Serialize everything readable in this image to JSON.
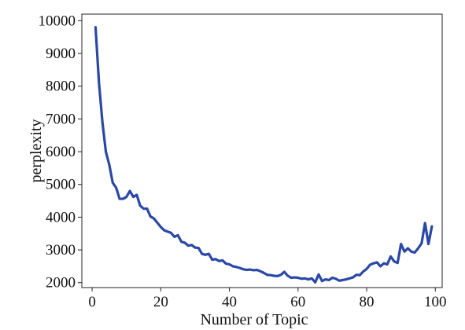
{
  "chart_data": {
    "type": "line",
    "title": "",
    "xlabel": "Number of Topic",
    "ylabel": "perplexity",
    "xlim": [
      -3,
      102
    ],
    "ylim": [
      1850,
      10200
    ],
    "xticks": [
      0,
      20,
      40,
      60,
      80,
      100
    ],
    "xtick_labels": [
      "0",
      "20",
      "40",
      "60",
      "80",
      "100"
    ],
    "yticks": [
      2000,
      3000,
      4000,
      5000,
      6000,
      7000,
      8000,
      9000,
      10000
    ],
    "ytick_labels": [
      "2000",
      "3000",
      "4000",
      "5000",
      "6000",
      "7000",
      "8000",
      "9000",
      "10000"
    ],
    "grid": false,
    "legend": "none",
    "series": [
      {
        "color": "#2a48a6",
        "x": [
          1,
          2,
          3,
          4,
          5,
          6,
          7,
          8,
          9,
          10,
          11,
          12,
          13,
          14,
          15,
          16,
          17,
          18,
          19,
          20,
          21,
          22,
          23,
          24,
          25,
          26,
          27,
          28,
          29,
          30,
          31,
          32,
          33,
          34,
          35,
          36,
          37,
          38,
          39,
          40,
          41,
          42,
          43,
          44,
          45,
          46,
          47,
          48,
          49,
          50,
          51,
          52,
          53,
          54,
          55,
          56,
          57,
          58,
          59,
          60,
          61,
          62,
          63,
          64,
          65,
          66,
          67,
          68,
          69,
          70,
          71,
          72,
          73,
          74,
          75,
          76,
          77,
          78,
          79,
          80,
          81,
          82,
          83,
          84,
          85,
          86,
          87,
          88,
          89,
          90,
          91,
          92,
          93,
          94,
          95,
          96,
          97,
          98,
          99
        ],
        "values": [
          9800,
          8100,
          6900,
          6000,
          5600,
          5050,
          4900,
          4560,
          4560,
          4620,
          4800,
          4620,
          4680,
          4350,
          4260,
          4260,
          4020,
          3960,
          3830,
          3700,
          3600,
          3560,
          3520,
          3400,
          3450,
          3250,
          3220,
          3130,
          3150,
          3070,
          3060,
          2880,
          2850,
          2880,
          2700,
          2720,
          2660,
          2680,
          2580,
          2560,
          2500,
          2480,
          2450,
          2410,
          2390,
          2400,
          2380,
          2390,
          2350,
          2300,
          2240,
          2230,
          2210,
          2200,
          2240,
          2330,
          2210,
          2150,
          2160,
          2150,
          2120,
          2130,
          2100,
          2130,
          2010,
          2250,
          2050,
          2100,
          2080,
          2150,
          2120,
          2060,
          2080,
          2100,
          2130,
          2160,
          2240,
          2230,
          2340,
          2420,
          2550,
          2590,
          2620,
          2500,
          2590,
          2560,
          2800,
          2650,
          2600,
          3180,
          2950,
          3050,
          2950,
          2920,
          3050,
          3200,
          3820,
          3180,
          3720
        ]
      }
    ]
  }
}
